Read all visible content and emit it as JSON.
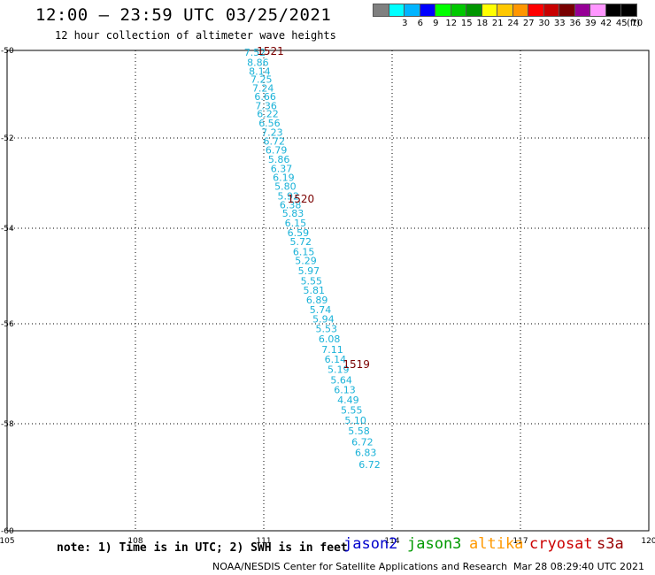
{
  "header": {
    "title": "12:00 – 23:59 UTC 03/25/2021",
    "subtitle": "12 hour collection of altimeter wave heights"
  },
  "color_scale": {
    "unit": "(ft)",
    "swatches": [
      {
        "label": "",
        "color": "#808080"
      },
      {
        "label": "3",
        "color": "#00ffff"
      },
      {
        "label": "6",
        "color": "#00b4ff"
      },
      {
        "label": "9",
        "color": "#0000ff"
      },
      {
        "label": "12",
        "color": "#00ff00"
      },
      {
        "label": "15",
        "color": "#00c800"
      },
      {
        "label": "18",
        "color": "#009600"
      },
      {
        "label": "21",
        "color": "#ffff00"
      },
      {
        "label": "24",
        "color": "#ffc800"
      },
      {
        "label": "27",
        "color": "#ff9600"
      },
      {
        "label": "30",
        "color": "#ff0000"
      },
      {
        "label": "33",
        "color": "#c80000"
      },
      {
        "label": "36",
        "color": "#780000"
      },
      {
        "label": "39",
        "color": "#960096"
      },
      {
        "label": "42",
        "color": "#ff96ff"
      },
      {
        "label": "45",
        "color": "#000000"
      },
      {
        "label": "70",
        "color": "#000000"
      }
    ]
  },
  "footer": {
    "note": "note: 1) Time is in UTC; 2) SWH is in feet",
    "satellites": [
      {
        "name": "jason2",
        "color": "#0000cc"
      },
      {
        "name": "jason3",
        "color": "#009900"
      },
      {
        "name": "altika",
        "color": "#ff9900"
      },
      {
        "name": "cryosat",
        "color": "#cc0000"
      },
      {
        "name": "s3a",
        "color": "#990000"
      }
    ],
    "credit": "NOAA/NESDIS Center for Satellite Applications and Research",
    "timestamp": "Mar 28 08:29:40 UTC 2021"
  },
  "chart_data": {
    "type": "scatter",
    "title": "12:00 – 23:59 UTC 03/25/2021",
    "subtitle": "12 hour collection of altimeter wave heights",
    "x_ticks": [
      "105",
      "108",
      "111",
      "114",
      "117",
      "120"
    ],
    "y_ticks": [
      "-50",
      "-52",
      "-54",
      "-56",
      "-58",
      "-60"
    ],
    "xlim": [
      105,
      120
    ],
    "ylim": [
      -60,
      -50
    ],
    "grid": true,
    "track_color": "#1ab2d8",
    "time_label_color": "#7a0000",
    "points": [
      {
        "lon": 110.54,
        "lat": -50.04,
        "swh": "7.52"
      },
      {
        "lon": 110.61,
        "lat": -50.27,
        "swh": "8.86"
      },
      {
        "lon": 110.65,
        "lat": -50.47,
        "swh": "8.14"
      },
      {
        "lon": 110.69,
        "lat": -50.66,
        "swh": "7.25"
      },
      {
        "lon": 110.73,
        "lat": -50.86,
        "swh": "7.24"
      },
      {
        "lon": 110.78,
        "lat": -51.05,
        "swh": "6.66"
      },
      {
        "lon": 110.8,
        "lat": -51.26,
        "swh": "7.36"
      },
      {
        "lon": 110.84,
        "lat": -51.44,
        "swh": "6.22"
      },
      {
        "lon": 110.88,
        "lat": -51.66,
        "swh": "6.56"
      },
      {
        "lon": 110.94,
        "lat": -51.87,
        "swh": "7.23"
      },
      {
        "lon": 110.99,
        "lat": -52.07,
        "swh": "6.72"
      },
      {
        "lon": 111.04,
        "lat": -52.26,
        "swh": "6.79"
      },
      {
        "lon": 111.1,
        "lat": -52.47,
        "swh": "5.86"
      },
      {
        "lon": 111.16,
        "lat": -52.68,
        "swh": "6.37"
      },
      {
        "lon": 111.21,
        "lat": -52.87,
        "swh": "6.19"
      },
      {
        "lon": 111.25,
        "lat": -53.07,
        "swh": "5.80"
      },
      {
        "lon": 111.32,
        "lat": -53.28,
        "swh": "5.92"
      },
      {
        "lon": 111.37,
        "lat": -53.48,
        "swh": "6.38"
      },
      {
        "lon": 111.43,
        "lat": -53.67,
        "swh": "5.83"
      },
      {
        "lon": 111.49,
        "lat": -53.88,
        "swh": "6.15"
      },
      {
        "lon": 111.55,
        "lat": -54.09,
        "swh": "6.59"
      },
      {
        "lon": 111.61,
        "lat": -54.28,
        "swh": "5.72"
      },
      {
        "lon": 111.68,
        "lat": -54.49,
        "swh": "6.15"
      },
      {
        "lon": 111.73,
        "lat": -54.68,
        "swh": "5.29"
      },
      {
        "lon": 111.8,
        "lat": -54.89,
        "swh": "5.97"
      },
      {
        "lon": 111.86,
        "lat": -55.1,
        "swh": "5.55"
      },
      {
        "lon": 111.92,
        "lat": -55.3,
        "swh": "5.81"
      },
      {
        "lon": 111.99,
        "lat": -55.5,
        "swh": "6.89"
      },
      {
        "lon": 112.07,
        "lat": -55.7,
        "swh": "5.74"
      },
      {
        "lon": 112.14,
        "lat": -55.9,
        "swh": "5.94"
      },
      {
        "lon": 112.21,
        "lat": -56.1,
        "swh": "5.53"
      },
      {
        "lon": 112.28,
        "lat": -56.3,
        "swh": "6.08"
      },
      {
        "lon": 112.35,
        "lat": -56.51,
        "swh": "7.11"
      },
      {
        "lon": 112.42,
        "lat": -56.71,
        "swh": "6.14"
      },
      {
        "lon": 112.49,
        "lat": -56.91,
        "swh": "5.19"
      },
      {
        "lon": 112.56,
        "lat": -57.12,
        "swh": "5.64"
      },
      {
        "lon": 112.64,
        "lat": -57.32,
        "swh": "6.13"
      },
      {
        "lon": 112.72,
        "lat": -57.52,
        "swh": "4.49"
      },
      {
        "lon": 112.8,
        "lat": -57.73,
        "swh": "5.55"
      },
      {
        "lon": 112.89,
        "lat": -57.93,
        "swh": "5.10"
      },
      {
        "lon": 112.97,
        "lat": -58.13,
        "swh": "5.58"
      },
      {
        "lon": 113.05,
        "lat": -58.34,
        "swh": "6.72"
      },
      {
        "lon": 113.13,
        "lat": -58.54,
        "swh": "6.83"
      },
      {
        "lon": 113.22,
        "lat": -58.76,
        "swh": "6.72"
      }
    ],
    "time_labels": [
      {
        "text": "1521",
        "lon": 110.84,
        "lat": -50.0
      },
      {
        "text": "1520",
        "lon": 111.55,
        "lat": -53.33
      },
      {
        "text": "1519",
        "lon": 112.85,
        "lat": -56.8
      }
    ]
  }
}
